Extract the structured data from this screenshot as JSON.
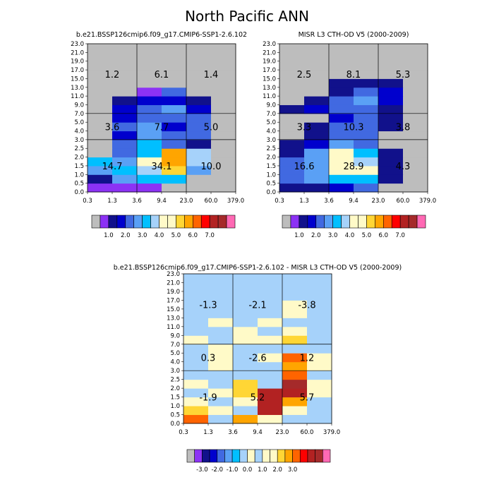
{
  "figure_title": "North Pacific ANN",
  "chart_data": [
    {
      "type": "heatmap",
      "title": "b.e21.BSSP126cmip6.f09_g17.CMIP6-SSP1-2.6.102",
      "x_tick_labels": [
        "0.3",
        "1.3",
        "3.6",
        "9.4",
        "23.0",
        "60.0",
        "379.0"
      ],
      "y_tick_labels": [
        "0.0",
        "0.5",
        "1.0",
        "1.5",
        "2.0",
        "2.5",
        "3.0",
        "4.0",
        "5.0",
        "7.0",
        "9.0",
        "11.0",
        "13.0",
        "15.0",
        "17.0",
        "19.0",
        "21.0",
        "23.0"
      ],
      "region_sums": [
        [
          "1.2",
          "6.1",
          "1.4"
        ],
        [
          "3.6",
          "7.7",
          "5.0"
        ],
        [
          "14.7",
          "34.1",
          "10.0"
        ]
      ],
      "cells": [
        [
          1,
          1,
          1,
          0,
          0,
          0
        ],
        [
          2,
          5,
          6,
          6,
          0,
          0
        ],
        [
          5,
          6,
          7,
          10,
          5,
          0
        ],
        [
          6,
          5,
          8,
          11,
          7,
          0
        ],
        [
          0,
          4,
          6,
          11,
          7,
          0
        ],
        [
          0,
          4,
          6,
          4,
          2,
          0
        ],
        [
          0,
          3,
          5,
          4,
          4,
          0
        ],
        [
          0,
          4,
          5,
          3,
          4,
          0
        ],
        [
          0,
          3,
          4,
          4,
          4,
          0
        ],
        [
          0,
          3,
          4,
          5,
          3,
          0
        ],
        [
          0,
          2,
          3,
          3,
          2,
          0
        ],
        [
          0,
          0,
          1,
          4,
          0,
          0
        ],
        [
          0,
          0,
          0,
          0,
          0,
          0
        ],
        [
          0,
          0,
          0,
          0,
          0,
          0
        ],
        [
          0,
          0,
          0,
          0,
          0,
          0
        ],
        [
          0,
          0,
          0,
          0,
          0,
          0
        ],
        [
          0,
          0,
          0,
          0,
          0,
          0
        ]
      ],
      "colorbar_labels": [
        "1.0",
        "2.0",
        "3.0",
        "4.0",
        "5.0",
        "6.0",
        "7.0"
      ]
    },
    {
      "type": "heatmap",
      "title": "MISR L3 CTH-OD V5 (2000-2009)",
      "x_tick_labels": [
        "0.3",
        "1.3",
        "3.6",
        "9.4",
        "23.0",
        "60.0",
        "379.0"
      ],
      "y_tick_labels": [
        "0.0",
        "0.5",
        "1.0",
        "1.5",
        "2.0",
        "2.5",
        "3.0",
        "4.0",
        "5.0",
        "7.0",
        "9.0",
        "11.0",
        "13.0",
        "15.0",
        "17.0",
        "19.0",
        "21.0",
        "23.0"
      ],
      "region_sums": [
        [
          "2.5",
          "8.1",
          "5.3"
        ],
        [
          "3.3",
          "10.3",
          "3.8"
        ],
        [
          "16.6",
          "28.9",
          "4.3"
        ]
      ],
      "cells": [
        [
          2,
          2,
          3,
          4,
          0,
          0
        ],
        [
          4,
          5,
          6,
          6,
          2,
          0
        ],
        [
          4,
          5,
          9,
          8,
          2,
          0
        ],
        [
          4,
          5,
          9,
          7,
          2,
          0
        ],
        [
          2,
          5,
          8,
          6,
          2,
          0
        ],
        [
          2,
          3,
          5,
          4,
          0,
          0
        ],
        [
          0,
          2,
          4,
          4,
          0,
          0
        ],
        [
          0,
          2,
          4,
          4,
          2,
          0
        ],
        [
          0,
          0,
          3,
          4,
          2,
          0
        ],
        [
          2,
          3,
          4,
          4,
          2,
          0
        ],
        [
          0,
          2,
          4,
          5,
          3,
          0
        ],
        [
          0,
          0,
          2,
          4,
          3,
          0
        ],
        [
          0,
          0,
          2,
          2,
          2,
          0
        ],
        [
          0,
          0,
          0,
          0,
          0,
          0
        ],
        [
          0,
          0,
          0,
          0,
          0,
          0
        ],
        [
          0,
          0,
          0,
          0,
          0,
          0
        ],
        [
          0,
          0,
          0,
          0,
          0,
          0
        ]
      ],
      "colorbar_labels": [
        "1.0",
        "2.0",
        "3.0",
        "4.0",
        "5.0",
        "6.0",
        "7.0"
      ]
    },
    {
      "type": "heatmap",
      "title": "b.e21.BSSP126cmip6.f09_g17.CMIP6-SSP1-2.6.102 - MISR L3 CTH-OD V5 (2000-2009)",
      "x_tick_labels": [
        "0.3",
        "1.3",
        "3.6",
        "9.4",
        "23.0",
        "60.0",
        "379.0"
      ],
      "y_tick_labels": [
        "0.0",
        "0.5",
        "1.0",
        "1.5",
        "2.0",
        "2.5",
        "3.0",
        "4.0",
        "5.0",
        "7.0",
        "9.0",
        "11.0",
        "13.0",
        "15.0",
        "17.0",
        "19.0",
        "21.0",
        "23.0"
      ],
      "region_sums": [
        [
          "-1.3",
          "-2.1",
          "-3.8"
        ],
        [
          "0.3",
          "-2.6",
          "1.2"
        ],
        [
          "-1.9",
          "5.2",
          "5.7"
        ]
      ],
      "cells": [
        [
          14,
          9,
          13,
          10,
          7,
          9
        ],
        [
          12,
          10,
          9,
          16,
          11,
          9
        ],
        [
          8,
          9,
          10,
          16,
          13,
          9
        ],
        [
          7,
          10,
          12,
          16,
          16,
          10
        ],
        [
          8,
          9,
          12,
          9,
          17,
          11
        ],
        [
          9,
          9,
          9,
          9,
          14,
          9
        ],
        [
          9,
          11,
          9,
          9,
          13,
          11
        ],
        [
          9,
          11,
          9,
          8,
          14,
          10
        ],
        [
          9,
          10,
          9,
          9,
          9,
          9
        ],
        [
          11,
          9,
          8,
          11,
          12,
          9
        ],
        [
          9,
          9,
          8,
          7,
          11,
          9
        ],
        [
          9,
          11,
          9,
          11,
          9,
          9
        ],
        [
          9,
          9,
          9,
          9,
          8,
          9
        ],
        [
          9,
          9,
          9,
          9,
          8,
          9
        ],
        [
          9,
          9,
          9,
          9,
          9,
          9
        ],
        [
          9,
          9,
          9,
          9,
          9,
          9
        ],
        [
          9,
          9,
          9,
          9,
          9,
          9
        ]
      ],
      "colorbar_labels": [
        "-3.0",
        "-2.0",
        "-1.0",
        "0.0",
        "1.0",
        "2.0",
        "3.0"
      ]
    }
  ],
  "palette": [
    "#bdbdbd",
    "#8c32f5",
    "#11118b",
    "#0000cd",
    "#4169e1",
    "#5aa0f5",
    "#00bfff",
    "#a6d2fa",
    "#fffac8",
    "#fffac8",
    "#ffd635",
    "#ffa500",
    "#ff6400",
    "#ff0000",
    "#b22222",
    "#a52a2a",
    "#ff69b4"
  ],
  "diff_palette": [
    "#bdbdbd",
    "#8c32f5",
    "#11118b",
    "#0000cd",
    "#4169e1",
    "#5aa0f5",
    "#00bfff",
    "#a6d2fa",
    "#fffac8",
    "#a6d2fa",
    "#fffac8",
    "#fffac8",
    "#ffd635",
    "#ffa500",
    "#ff6400",
    "#ff0000",
    "#b22222",
    "#a52a2a",
    "#ff69b4"
  ]
}
